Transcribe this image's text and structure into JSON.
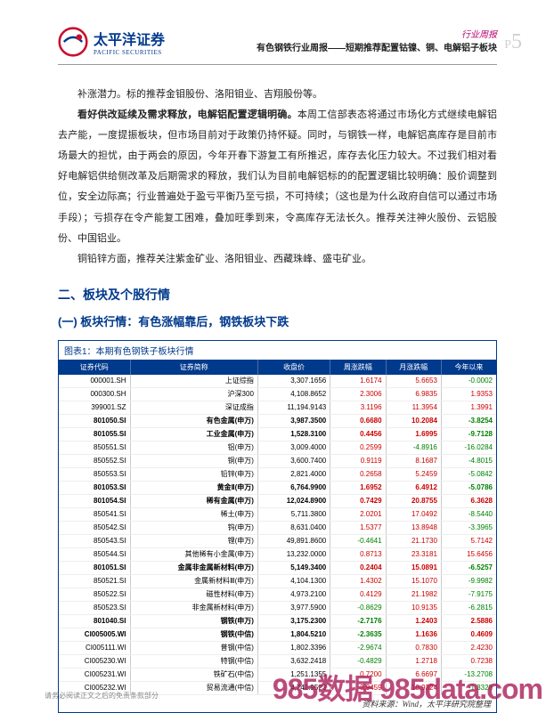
{
  "header": {
    "logo_cn": "太平洋证券",
    "logo_en": "PACIFIC SECURITIES",
    "doc_type": "行业周报",
    "title_line": "有色钢铁行业周报——短期推荐配置钴镍、铜、电解铝子板块",
    "page_prefix": "P",
    "page_num": "5"
  },
  "paragraphs": {
    "p1": "补涨潜力。标的推荐金钼股份、洛阳钼业、吉翔股份等。",
    "p2_bold": "看好供改延续及需求释放，电解铝配置逻辑明确。",
    "p2_rest": "本周工信部表态将通过市场化方式继续电解铝去产能，一度提振板块，但市场目前对于政策仍持怀疑。同时，与钢铁一样，电解铝高库存是目前市场最大的担忧，由于两会的原因，今年开春下游复工有所推迟，库存去化压力较大。不过我们相对看好电解铝供给侧改革及后期需求的释放，我们认为目前电解铝标的的配置逻辑比较明确：股价调整到位，安全边际高；行业普遍处于盈亏平衡乃至亏损，不可持续；（这也是为什么政府自信可以通过市场手段）；亏损存在令产能复工困难，叠加旺季到来，令高库存无法长久。推荐关注神火股份、云铝股份、中国铝业。",
    "p3": "铜铅锌方面，推荐关注紫金矿业、洛阳钼业、西藏珠峰、盛屯矿业。"
  },
  "section_title": "二、板块及个股行情",
  "subsection_title": "(一) 板块行情：有色涨幅靠后，钢铁板块下跌",
  "table": {
    "title": "图表1：本期有色钢铁子板块行情",
    "columns": [
      "证券代码",
      "证券简称",
      "收盘价",
      "周涨跌幅",
      "月涨跌幅",
      "今年以来"
    ],
    "source": "资料来源：Wind，太平洋研究院整理",
    "rows": [
      {
        "code": "000001.SH",
        "name": "上证综指",
        "close": "3,307.1656",
        "w": "1.6174",
        "m": "5.6653",
        "y": "-0.0002",
        "bold": false
      },
      {
        "code": "000300.SH",
        "name": "沪深300",
        "close": "4,108.8652",
        "w": "2.3006",
        "m": "6.9835",
        "y": "1.9353",
        "bold": false
      },
      {
        "code": "399001.SZ",
        "name": "深证成指",
        "close": "11,194.9143",
        "w": "3.1196",
        "m": "11.3954",
        "y": "1.3991",
        "bold": false
      },
      {
        "code": "801050.SI",
        "name": "有色金属(申万)",
        "close": "3,987.3500",
        "w": "0.6680",
        "m": "10.2084",
        "y": "-3.8254",
        "bold": true
      },
      {
        "code": "801055.SI",
        "name": "工业金属(申万)",
        "close": "1,528.3100",
        "w": "0.4456",
        "m": "1.6995",
        "y": "-9.7128",
        "bold": true
      },
      {
        "code": "850551.SI",
        "name": "铝(申万)",
        "close": "3,009.4000",
        "w": "0.2599",
        "m": "-4.8916",
        "y": "-16.0284",
        "bold": false
      },
      {
        "code": "850552.SI",
        "name": "铜(申万)",
        "close": "3,600.7400",
        "w": "0.9119",
        "m": "8.1687",
        "y": "-4.8015",
        "bold": false
      },
      {
        "code": "850553.SI",
        "name": "铅锌(申万)",
        "close": "2,821.4000",
        "w": "0.2658",
        "m": "5.2459",
        "y": "-5.0842",
        "bold": false
      },
      {
        "code": "801053.SI",
        "name": "黄金Ⅱ(申万)",
        "close": "6,764.9900",
        "w": "1.6952",
        "m": "6.4912",
        "y": "-5.0786",
        "bold": true
      },
      {
        "code": "801054.SI",
        "name": "稀有金属(申万)",
        "close": "12,024.8900",
        "w": "0.7429",
        "m": "20.8755",
        "y": "6.3628",
        "bold": true
      },
      {
        "code": "850541.SI",
        "name": "稀土(申万)",
        "close": "5,711.3800",
        "w": "2.0201",
        "m": "17.0492",
        "y": "-8.5440",
        "bold": false
      },
      {
        "code": "850542.SI",
        "name": "钨(申万)",
        "close": "8,631.0400",
        "w": "1.5377",
        "m": "13.8948",
        "y": "-3.3965",
        "bold": false
      },
      {
        "code": "850543.SI",
        "name": "锂(申万)",
        "close": "49,891.8600",
        "w": "-0.4641",
        "m": "21.1730",
        "y": "5.7142",
        "bold": false
      },
      {
        "code": "850544.SI",
        "name": "其他稀有小金属(申万)",
        "close": "13,232.0000",
        "w": "0.8713",
        "m": "23.3181",
        "y": "15.6456",
        "bold": false
      },
      {
        "code": "801051.SI",
        "name": "金属非金属新材料(申万)",
        "close": "5,149.3400",
        "w": "0.2404",
        "m": "15.0891",
        "y": "-6.5257",
        "bold": true
      },
      {
        "code": "850521.SI",
        "name": "金属新材料Ⅲ(申万)",
        "close": "4,104.1300",
        "w": "1.4302",
        "m": "15.1070",
        "y": "-9.9982",
        "bold": false
      },
      {
        "code": "850522.SI",
        "name": "磁性材料(申万)",
        "close": "4,973.2100",
        "w": "0.4129",
        "m": "21.1982",
        "y": "-7.9175",
        "bold": false
      },
      {
        "code": "850523.SI",
        "name": "非金属新材料(申万)",
        "close": "3,977.5900",
        "w": "-0.8629",
        "m": "10.9135",
        "y": "-6.2815",
        "bold": false
      },
      {
        "code": "801040.SI",
        "name": "钢铁(申万)",
        "close": "3,175.2300",
        "w": "-2.7176",
        "m": "1.2403",
        "y": "2.5886",
        "bold": true
      },
      {
        "code": "CI005005.WI",
        "name": "钢铁(中信)",
        "close": "1,804.5210",
        "w": "-2.3635",
        "m": "1.1636",
        "y": "0.4609",
        "bold": true
      },
      {
        "code": "CI005111.WI",
        "name": "普钢(中信)",
        "close": "1,802.3396",
        "w": "-2.9674",
        "m": "0.7830",
        "y": "2.4230",
        "bold": false
      },
      {
        "code": "CI005230.WI",
        "name": "特钢(中信)",
        "close": "3,632.2418",
        "w": "-0.4829",
        "m": "1.2718",
        "y": "0.7238",
        "bold": false
      },
      {
        "code": "CI005231.WI",
        "name": "铁矿石(中信)",
        "close": "1,251.1355",
        "w": "0.7200",
        "m": "6.6697",
        "y": "-13.2708",
        "bold": false
      },
      {
        "code": "CI005232.WI",
        "name": "贸易流通(中信)",
        "close": "4,742.9523",
        "w": "3.9459",
        "m": "10.9324",
        "y": "-1.3328",
        "bold": false
      }
    ]
  },
  "footer": "请务必阅读正文之后的免责条款部分",
  "watermark": "985数据 985data.com"
}
